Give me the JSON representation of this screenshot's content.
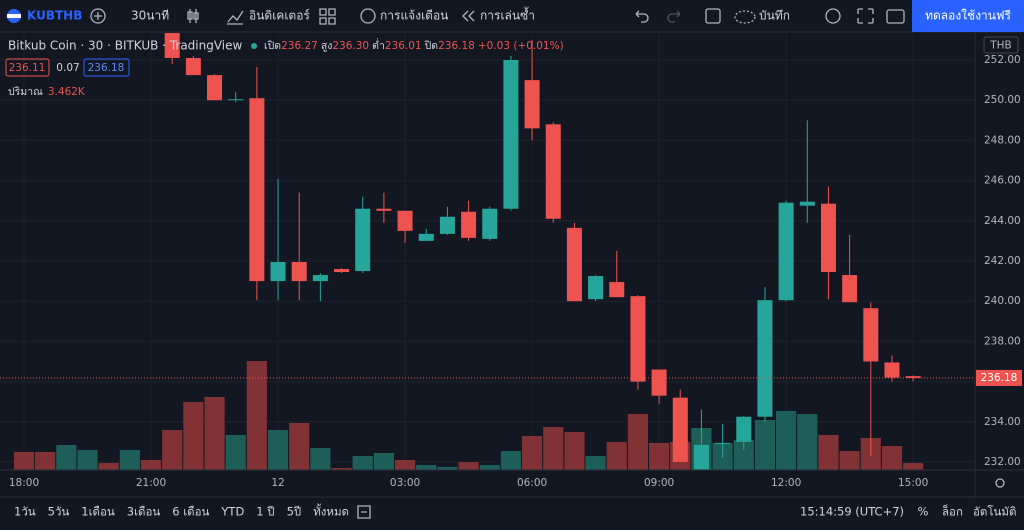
{
  "chart_data": {
    "type": "candlestick",
    "title": "Bitkub Coin · 30 · BITKUB · TradingView",
    "categories": [
      "18:00",
      null,
      null,
      null,
      null,
      null,
      "21:00",
      null,
      null,
      null,
      null,
      null,
      "12",
      null,
      null,
      null,
      null,
      null,
      "03:00",
      null,
      null,
      null,
      null,
      null,
      "06:00",
      null,
      null,
      null,
      null,
      null,
      "09:00",
      null,
      null,
      null,
      null,
      null,
      "12:00",
      null,
      null,
      null,
      null,
      null,
      "15:00"
    ],
    "open": [
      null,
      null,
      null,
      null,
      null,
      null,
      null,
      253.5,
      252.1,
      251.25,
      250.0,
      250.1,
      241.0,
      241.95,
      241.0,
      241.6,
      241.5,
      244.6,
      244.5,
      243.0,
      243.35,
      244.45,
      243.1,
      244.6,
      251.0,
      248.8,
      243.65,
      240.1,
      240.95,
      240.25,
      236.6,
      235.2,
      231.55,
      232.9,
      233.0,
      234.25,
      240.05,
      244.75,
      244.85,
      241.3,
      239.65,
      236.95,
      236.27
    ],
    "high": [
      null,
      null,
      null,
      null,
      null,
      null,
      null,
      254.0,
      252.2,
      251.3,
      250.4,
      251.65,
      246.1,
      245.4,
      241.4,
      241.65,
      245.2,
      245.4,
      244.5,
      243.6,
      244.7,
      245.0,
      244.7,
      252.2,
      253.0,
      248.9,
      243.9,
      241.3,
      242.5,
      240.3,
      236.6,
      235.6,
      234.6,
      233.9,
      234.3,
      240.7,
      245.0,
      249.0,
      245.7,
      243.3,
      239.95,
      237.3,
      236.3
    ],
    "low": [
      null,
      null,
      null,
      null,
      null,
      null,
      null,
      251.8,
      251.25,
      250.0,
      249.9,
      240.05,
      240.05,
      240.05,
      240.0,
      241.4,
      241.4,
      243.9,
      242.9,
      243.0,
      243.3,
      243.0,
      243.0,
      244.5,
      248.0,
      243.9,
      240.0,
      240.0,
      240.2,
      235.6,
      234.9,
      232.0,
      231.55,
      232.2,
      232.6,
      234.0,
      240.0,
      243.9,
      240.1,
      239.95,
      232.3,
      236.0,
      236.01
    ],
    "close": [
      null,
      null,
      null,
      null,
      null,
      null,
      null,
      252.1,
      251.25,
      250.0,
      250.05,
      241.0,
      241.95,
      241.0,
      241.3,
      241.45,
      244.6,
      244.5,
      243.5,
      243.35,
      244.2,
      243.15,
      244.6,
      252.0,
      248.6,
      244.1,
      240.0,
      241.25,
      240.2,
      236.0,
      235.3,
      232.0,
      232.85,
      232.95,
      234.25,
      240.05,
      244.9,
      244.95,
      241.45,
      239.95,
      237.0,
      236.2,
      236.18
    ],
    "volume": [
      9,
      9,
      12.5,
      10,
      3.5,
      10,
      5,
      20,
      34,
      36.5,
      17.5,
      54.5,
      20,
      23.5,
      11,
      1,
      7,
      8.5,
      5,
      2.5,
      1.5,
      4,
      2.5,
      9.5,
      17,
      21.5,
      19,
      7,
      14,
      28,
      13.5,
      14,
      21,
      13.5,
      15,
      25,
      29.5,
      28,
      17.5,
      9.5,
      16,
      12,
      3.462
    ],
    "volume_value_label": "3.462K",
    "volume_colors": [
      "#803234",
      "#803234",
      "#1e5e58",
      "#1e5e58",
      "#803234",
      "#1e5e58",
      "#803234",
      "#803234",
      "#803234",
      "#803234",
      "#1e5e58",
      "#803234",
      "#1e5e58",
      "#803234",
      "#1e5e58",
      "#803234",
      "#1e5e58",
      "#1e5e58",
      "#803234",
      "#1e5e58",
      "#1e5e58",
      "#803234",
      "#1e5e58",
      "#1e5e58",
      "#803234",
      "#803234",
      "#803234",
      "#1e5e58",
      "#803234",
      "#803234",
      "#803234",
      "#803234",
      "#1e5e58",
      "#1e5e58",
      "#1e5e58",
      "#1e5e58",
      "#1e5e58",
      "#1e5e58",
      "#803234",
      "#803234",
      "#803234",
      "#803234",
      "#803234"
    ],
    "vlim": [
      0,
      110
    ],
    "up_color": "#26a69a",
    "down_color": "#ef5350",
    "ylim": [
      231.6,
      253.2
    ],
    "yticks": [
      {
        "value": 232,
        "label": "232.00"
      },
      {
        "value": 234,
        "label": "234.00"
      },
      {
        "value": 236,
        "label": "236.00"
      },
      {
        "value": 238,
        "label": "238.00"
      },
      {
        "value": 240,
        "label": "240.00"
      },
      {
        "value": 242,
        "label": "242.00"
      },
      {
        "value": 244,
        "label": "244.00"
      },
      {
        "value": 246,
        "label": "246.00"
      },
      {
        "value": 248,
        "label": "248.00"
      },
      {
        "value": 250,
        "label": "250.00"
      },
      {
        "value": 252,
        "label": "252.00"
      }
    ],
    "last_labels": {
      "open": "236.27",
      "high": "236.30",
      "low": "236.01",
      "close": "236.18"
    },
    "grid": true
  },
  "ui": {
    "symbol": "KUBTHB",
    "interval": "30นาที",
    "indicators": "อินดิเคเตอร์",
    "alerts": "การแจ้งเตือน",
    "replay": "การเล่นซ้ำ",
    "save": "บันทึก",
    "trial": "ทดลองใช้งานฟรี",
    "open_label": "เปิด",
    "high_label": "สูง",
    "low_label": "ต่ำ",
    "close_label": "ปิด",
    "change": "+0.03 (+0.01%)",
    "bid": "236.11",
    "spread": "0.07",
    "ask": "236.18",
    "volume_label": "ปริมาณ",
    "currency": "THB",
    "ranges": [
      "1วัน",
      "5วัน",
      "1เดือน",
      "3เดือน",
      "6 เดือน",
      "YTD",
      "1 ปี",
      "5ปี",
      "ทั้งหมด"
    ],
    "clock": "15:14:59 (UTC+7)",
    "percent": "%",
    "log": "ล็อก",
    "auto": "อัตโนมัติ"
  }
}
